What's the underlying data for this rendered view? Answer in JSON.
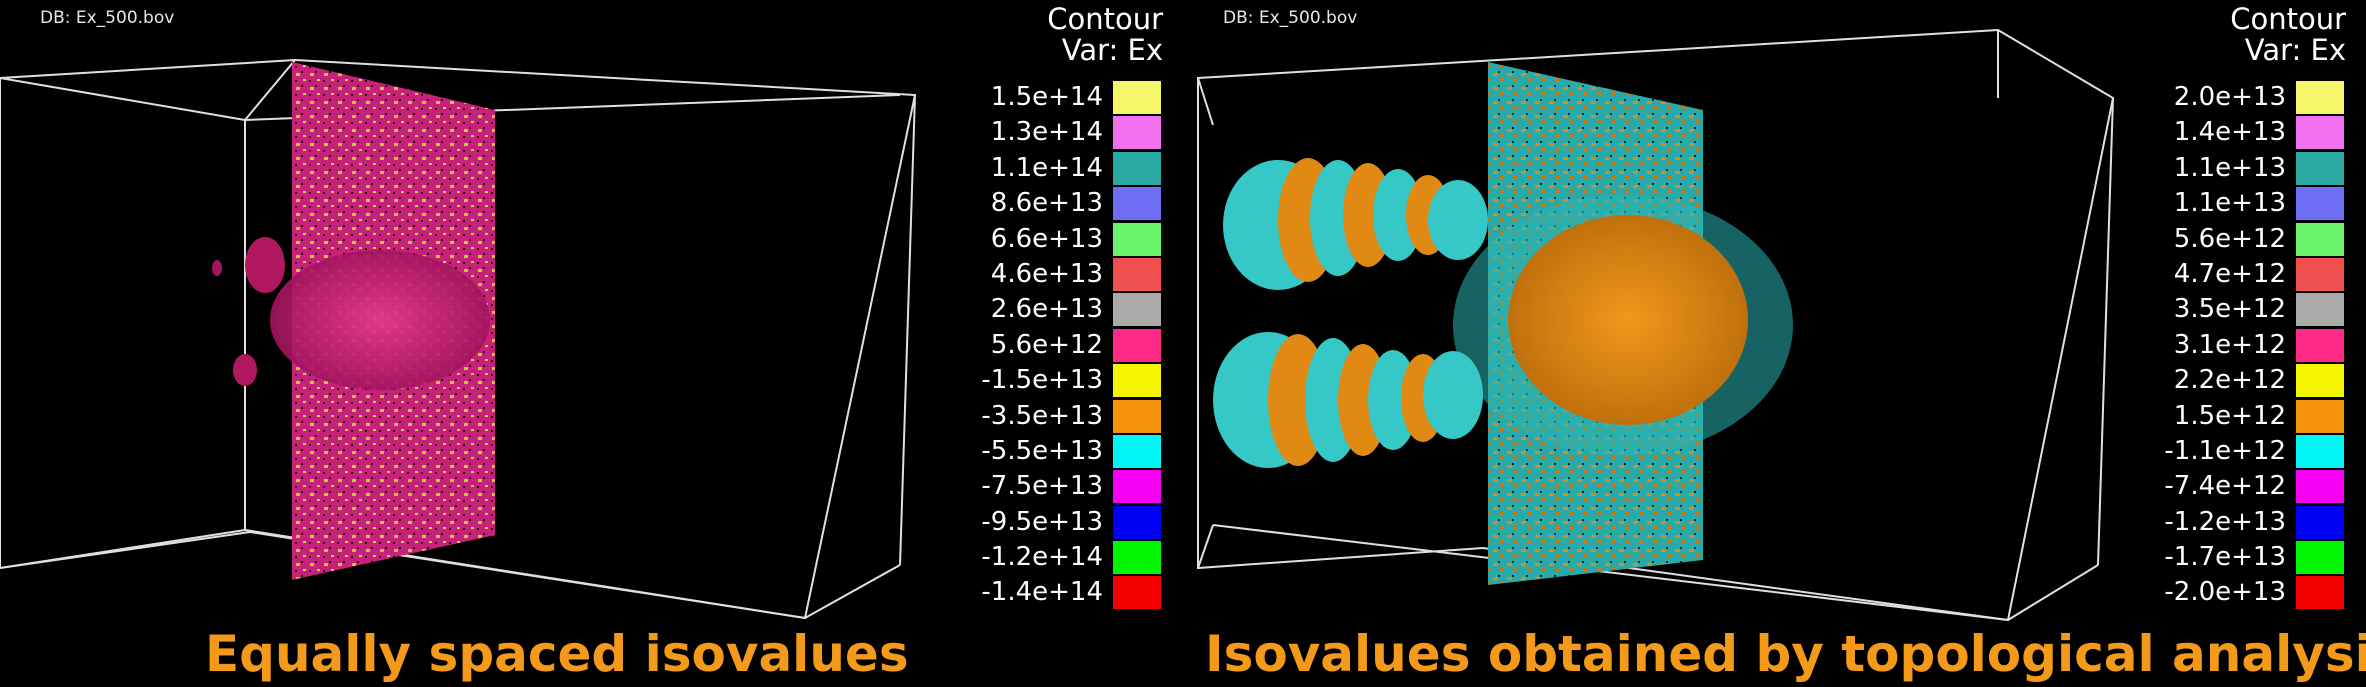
{
  "left": {
    "db_label": "DB: Ex_500.bov",
    "legend_title_line1": "Contour",
    "legend_title_line2": "Var: Ex",
    "legend": [
      {
        "label": "1.5e+14",
        "color": "#f5f56a"
      },
      {
        "label": "1.3e+14",
        "color": "#f070f0"
      },
      {
        "label": "1.1e+14",
        "color": "#2aa9a2"
      },
      {
        "label": "8.6e+13",
        "color": "#6e6ef5"
      },
      {
        "label": "6.6e+13",
        "color": "#6cf56c"
      },
      {
        "label": "4.6e+13",
        "color": "#f05050"
      },
      {
        "label": "2.6e+13",
        "color": "#aaaaaa"
      },
      {
        "label": "5.6e+12",
        "color": "#ff2a86"
      },
      {
        "label": "-1.5e+13",
        "color": "#f5f500"
      },
      {
        "label": "-3.5e+13",
        "color": "#f5940c"
      },
      {
        "label": "-5.5e+13",
        "color": "#00f5f5"
      },
      {
        "label": "-7.5e+13",
        "color": "#f500f5"
      },
      {
        "label": "-9.5e+13",
        "color": "#0000f5"
      },
      {
        "label": "-1.2e+14",
        "color": "#00f500"
      },
      {
        "label": "-1.4e+14",
        "color": "#f50000"
      }
    ],
    "caption": "Equally spaced isovalues"
  },
  "right": {
    "db_label": "DB: Ex_500.bov",
    "legend_title_line1": "Contour",
    "legend_title_line2": "Var: Ex",
    "legend": [
      {
        "label": "2.0e+13",
        "color": "#f5f56a"
      },
      {
        "label": "1.4e+13",
        "color": "#f070f0"
      },
      {
        "label": "1.1e+13",
        "color": "#2aa9a2"
      },
      {
        "label": "1.1e+13",
        "color": "#6e6ef5"
      },
      {
        "label": "5.6e+12",
        "color": "#6cf56c"
      },
      {
        "label": "4.7e+12",
        "color": "#f05050"
      },
      {
        "label": "3.5e+12",
        "color": "#aaaaaa"
      },
      {
        "label": "3.1e+12",
        "color": "#ff2a86"
      },
      {
        "label": "2.2e+12",
        "color": "#f5f500"
      },
      {
        "label": "1.5e+12",
        "color": "#f5940c"
      },
      {
        "label": "-1.1e+12",
        "color": "#00f5f5"
      },
      {
        "label": "-7.4e+12",
        "color": "#f500f5"
      },
      {
        "label": "-1.2e+13",
        "color": "#0000f5"
      },
      {
        "label": "-1.7e+13",
        "color": "#00f500"
      },
      {
        "label": "-2.0e+13",
        "color": "#f50000"
      }
    ],
    "caption": "Isovalues obtained by topological analysis"
  }
}
